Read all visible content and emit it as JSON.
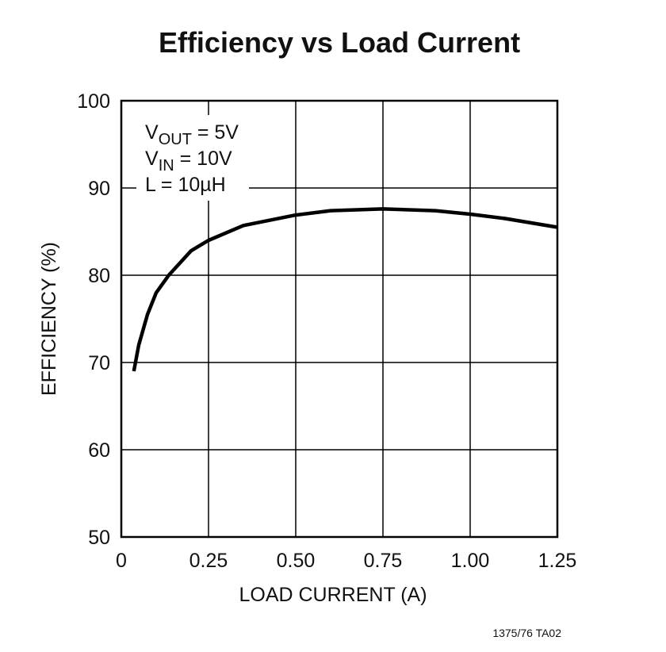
{
  "chart_data": {
    "type": "line",
    "title": "Efficiency vs Load Current",
    "x_label": "LOAD CURRENT (A)",
    "y_label": "EFFICIENCY (%)",
    "annotations": [
      {
        "main": "V",
        "sub": "OUT",
        "rest": " = 5V"
      },
      {
        "main": "V",
        "sub": "IN",
        "rest": " = 10V"
      },
      {
        "main": "L = 10µH"
      }
    ],
    "footnote": "1375/76 TA02",
    "xlim": [
      0,
      1.25
    ],
    "ylim": [
      50,
      100
    ],
    "xticks": [
      0,
      0.25,
      {
        "value": 0.5,
        "label": "0.50"
      },
      0.75,
      {
        "value": 1,
        "label": "1.00"
      },
      1.25
    ],
    "yticks": [
      50,
      60,
      70,
      80,
      90,
      100
    ],
    "grid": true,
    "series": [
      {
        "color": "#000000",
        "x": [
          0.036,
          0.05,
          0.075,
          0.1,
          0.136,
          0.2,
          0.25,
          0.35,
          0.5,
          0.6,
          0.75,
          0.9,
          1.0,
          1.1,
          1.25
        ],
        "values": [
          69,
          72,
          75.5,
          78,
          80,
          82.8,
          84,
          85.7,
          86.9,
          87.4,
          87.6,
          87.4,
          87.0,
          86.5,
          85.5
        ]
      }
    ]
  }
}
